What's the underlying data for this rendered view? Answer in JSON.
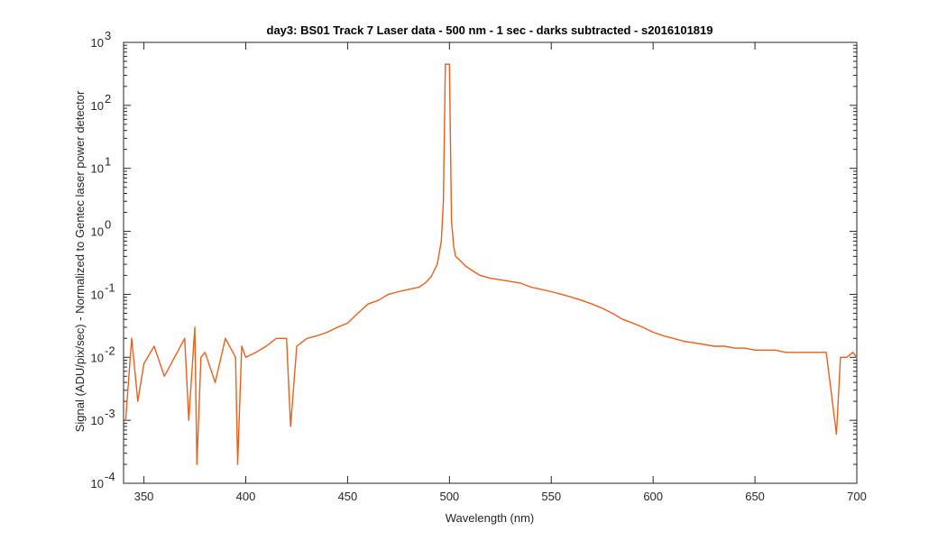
{
  "chart_data": {
    "type": "line",
    "title": "day3: BS01  Track 7 Laser data - 500 nm - 1 sec - darks subtracted - s2016101819",
    "xlabel": "Wavelength (nm)",
    "ylabel": "Signal (ADU/pix/sec) - Normalized to Gentec laser power detector",
    "xlim": [
      340,
      700
    ],
    "ylim": [
      0.0001,
      1000
    ],
    "yscale": "log",
    "grid": false,
    "x_ticks": [
      350,
      400,
      450,
      500,
      550,
      600,
      650,
      700
    ],
    "x_tick_labels": [
      "350",
      "400",
      "450",
      "500",
      "550",
      "600",
      "650",
      "700"
    ],
    "y_ticks": [
      0.0001,
      0.001,
      0.01,
      0.1,
      1,
      10,
      100,
      1000
    ],
    "y_tick_labels": [
      {
        "base": "10",
        "exp": "-4"
      },
      {
        "base": "10",
        "exp": "-3"
      },
      {
        "base": "10",
        "exp": "-2"
      },
      {
        "base": "10",
        "exp": "-1"
      },
      {
        "base": "10",
        "exp": "0"
      },
      {
        "base": "10",
        "exp": "1"
      },
      {
        "base": "10",
        "exp": "2"
      },
      {
        "base": "10",
        "exp": "3"
      }
    ],
    "colors": {
      "series": "#E8601C",
      "axes": "#262626"
    },
    "series": [
      {
        "x": [
          341,
          344,
          347,
          350,
          355,
          360,
          365,
          370,
          372,
          375,
          376,
          378,
          380,
          385,
          390,
          395,
          396,
          398,
          400,
          405,
          410,
          415,
          420,
          422,
          425,
          430,
          435,
          440,
          445,
          450,
          455,
          460,
          465,
          470,
          475,
          480,
          485,
          488,
          491,
          494,
          496,
          497,
          498,
          499,
          500,
          501,
          502,
          503,
          505,
          508,
          511,
          515,
          520,
          525,
          530,
          535,
          540,
          545,
          550,
          555,
          560,
          565,
          570,
          575,
          580,
          585,
          590,
          595,
          600,
          605,
          610,
          615,
          620,
          625,
          630,
          635,
          640,
          645,
          650,
          655,
          660,
          665,
          670,
          675,
          680,
          685,
          690,
          692,
          695,
          698,
          700
        ],
        "y": [
          0.001,
          0.02,
          0.002,
          0.008,
          0.015,
          0.005,
          0.01,
          0.02,
          0.001,
          0.03,
          0.0002,
          0.01,
          0.012,
          0.004,
          0.02,
          0.01,
          0.0002,
          0.015,
          0.01,
          0.012,
          0.015,
          0.02,
          0.02,
          0.0008,
          0.015,
          0.02,
          0.022,
          0.025,
          0.03,
          0.035,
          0.05,
          0.07,
          0.08,
          0.1,
          0.11,
          0.12,
          0.13,
          0.15,
          0.19,
          0.3,
          0.7,
          3,
          450,
          450,
          450,
          1.5,
          0.6,
          0.4,
          0.35,
          0.28,
          0.24,
          0.2,
          0.18,
          0.17,
          0.16,
          0.15,
          0.13,
          0.12,
          0.11,
          0.1,
          0.09,
          0.08,
          0.07,
          0.06,
          0.05,
          0.04,
          0.035,
          0.03,
          0.025,
          0.022,
          0.02,
          0.018,
          0.017,
          0.016,
          0.015,
          0.015,
          0.014,
          0.014,
          0.013,
          0.013,
          0.013,
          0.012,
          0.012,
          0.012,
          0.012,
          0.012,
          0.0006,
          0.01,
          0.01,
          0.012,
          0.01
        ]
      }
    ]
  }
}
